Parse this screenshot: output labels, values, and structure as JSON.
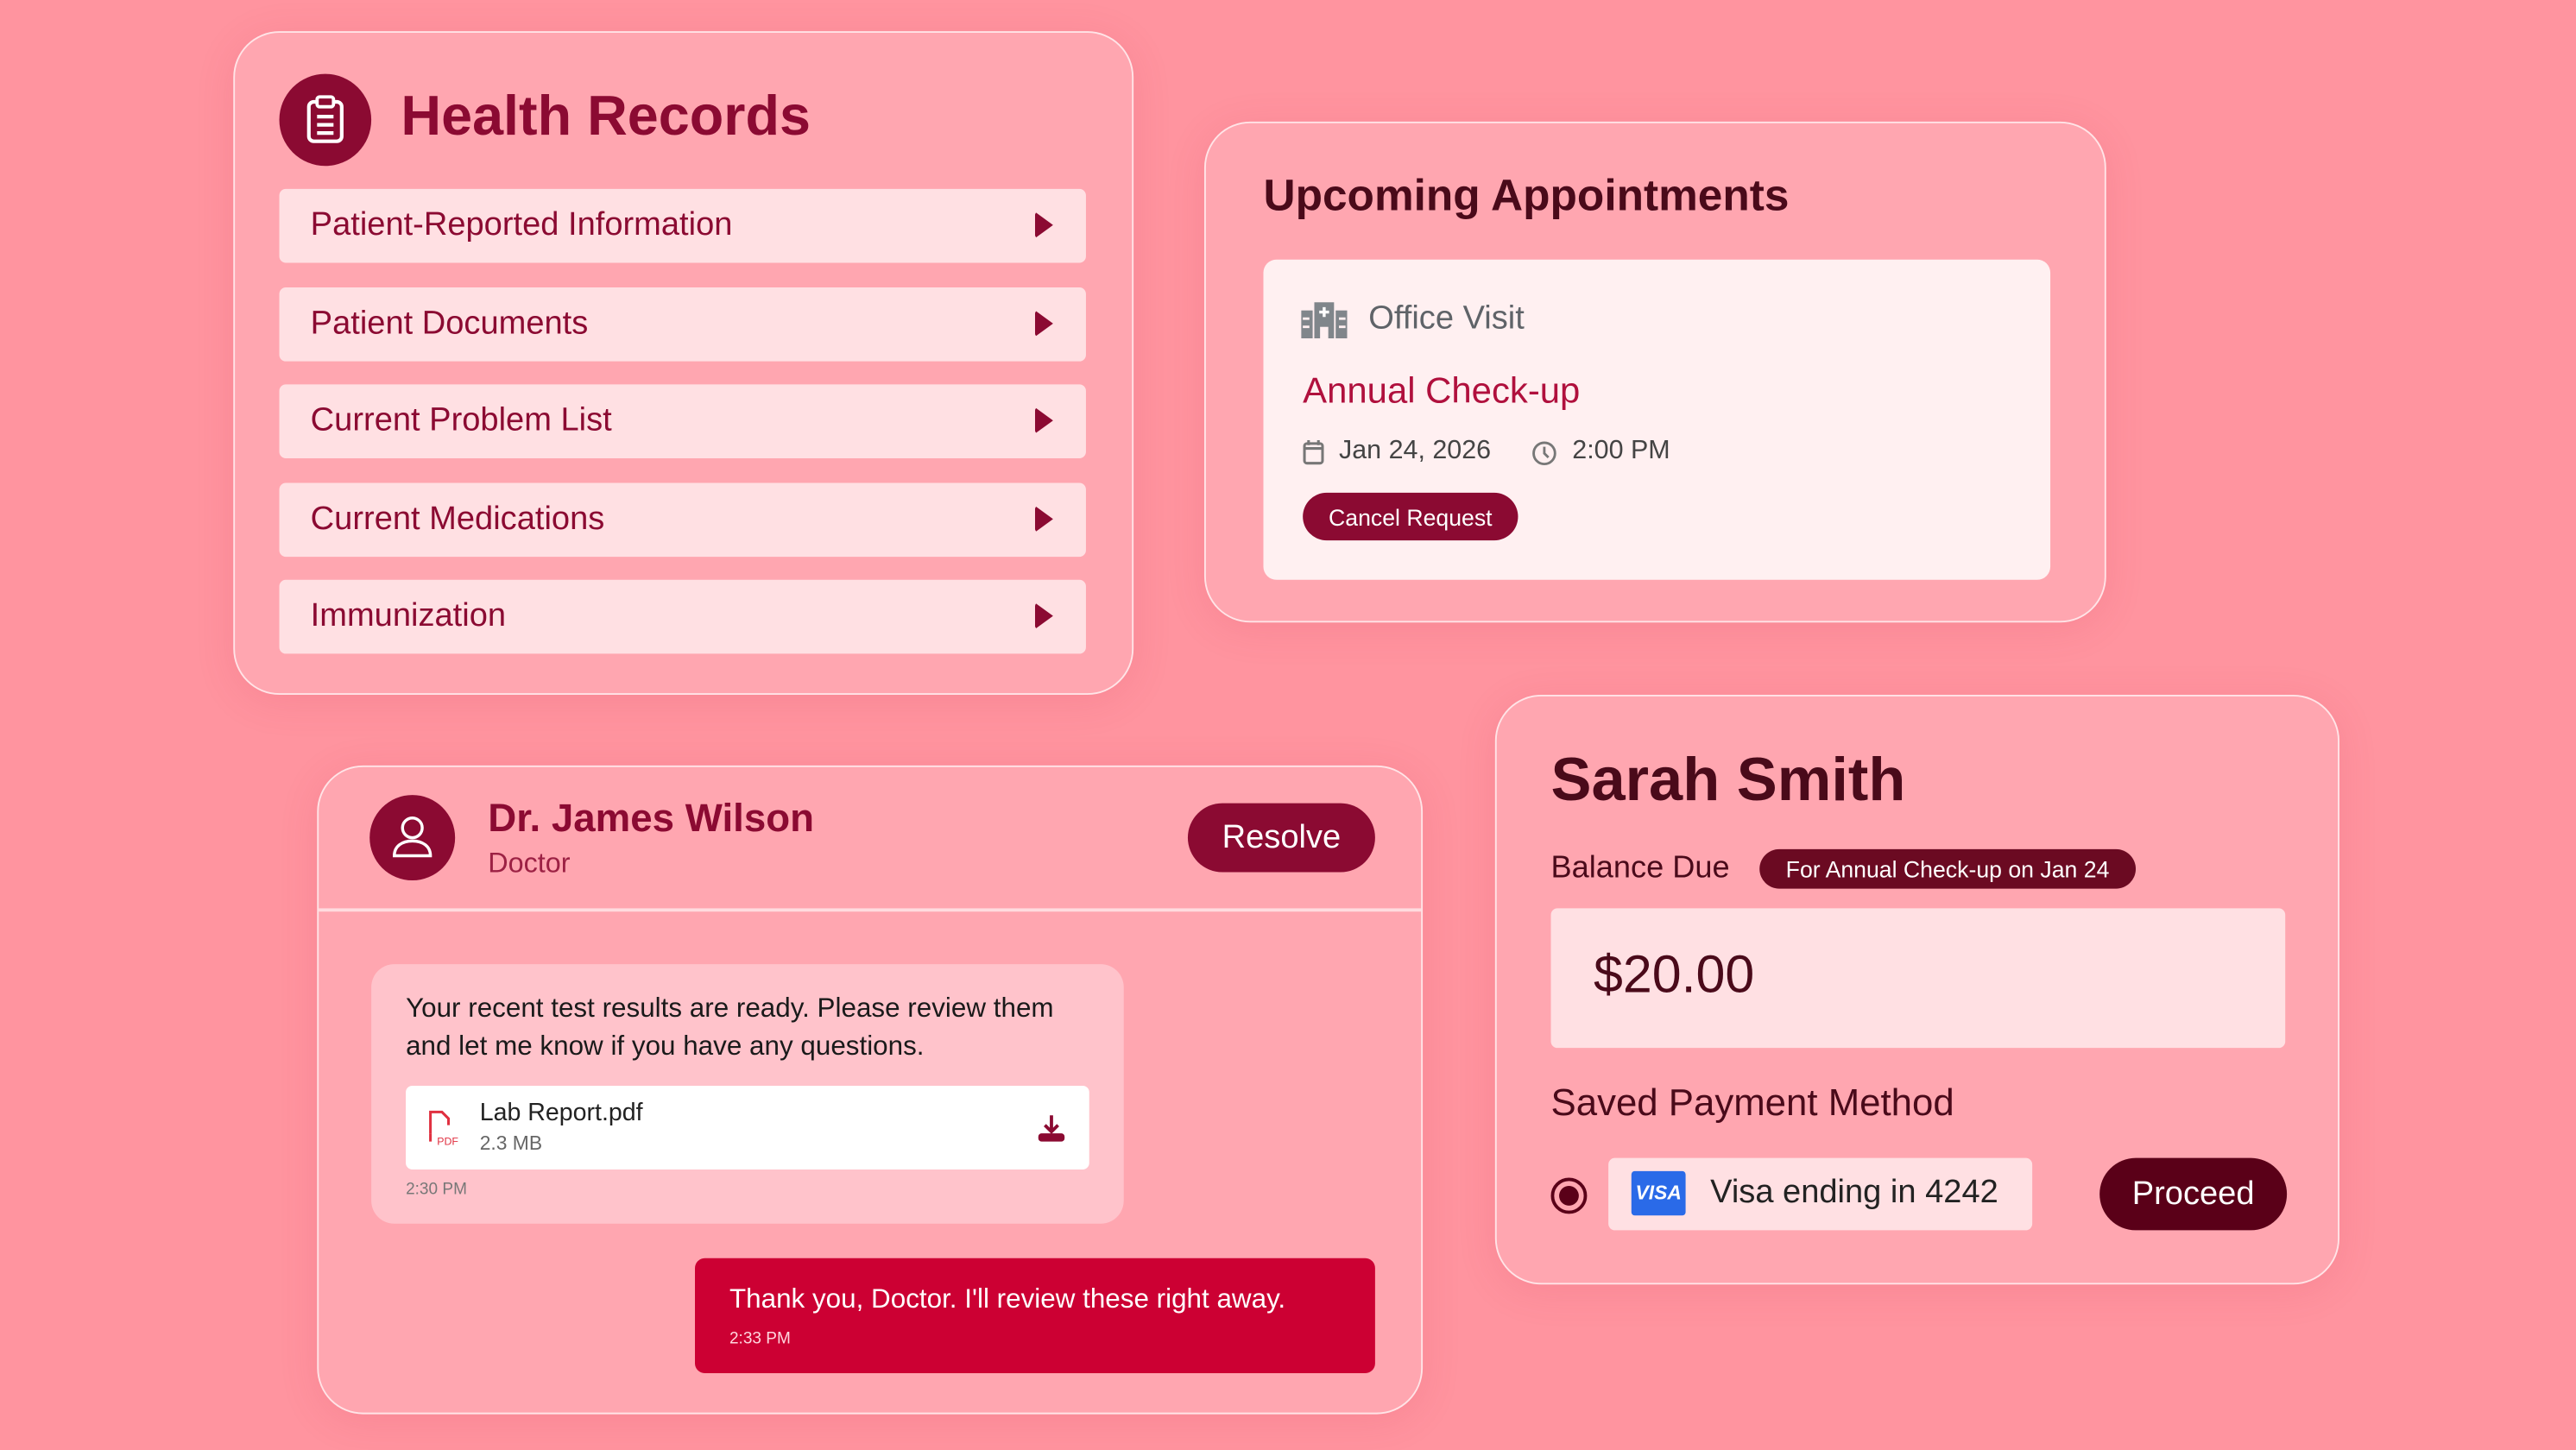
{
  "health_records": {
    "title": "Health Records",
    "icon": "clipboard-icon",
    "items": [
      {
        "label": "Patient-Reported Information"
      },
      {
        "label": "Patient Documents"
      },
      {
        "label": "Current Problem List"
      },
      {
        "label": "Current Medications"
      },
      {
        "label": "Immunization"
      }
    ]
  },
  "appointments": {
    "title": "Upcoming Appointments",
    "type": "Office Visit",
    "name": "Annual Check-up",
    "date": "Jan 24, 2026",
    "time": "2:00 PM",
    "cancel_label": "Cancel Request"
  },
  "chat": {
    "doctor_name": "Dr. James Wilson",
    "doctor_role": "Doctor",
    "resolve_label": "Resolve",
    "incoming": {
      "text": "Your recent test results are ready. Please review them and let me know if you have any questions.",
      "file_name": "Lab Report.pdf",
      "file_size": "2.3 MB",
      "time": "2:30 PM"
    },
    "outgoing": {
      "text": "Thank you, Doctor. I'll review these right away.",
      "time": "2:33 PM"
    }
  },
  "billing": {
    "patient_name": "Sarah Smith",
    "balance_label": "Balance Due",
    "badge": "For Annual Check-up on Jan 24",
    "amount": "$20.00",
    "payment_heading": "Saved Payment Method",
    "card_brand": "VISA",
    "card_label": "Visa ending in 4242",
    "proceed_label": "Proceed"
  },
  "colors": {
    "background": "#ff949f",
    "brand": "#8b0a32",
    "accent": "#cc0033",
    "dark": "#5a0018"
  }
}
